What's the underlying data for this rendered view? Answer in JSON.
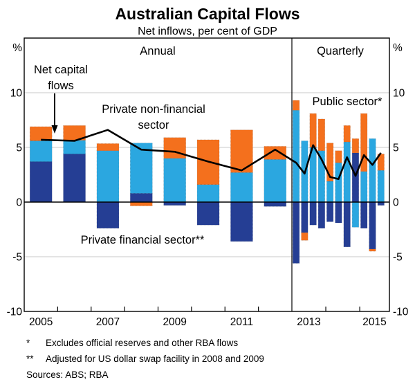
{
  "title": "Australian Capital Flows",
  "subtitle": "Net inflows, per cent of GDP",
  "panels": {
    "annual": "Annual",
    "quarterly": "Quarterly"
  },
  "axis": {
    "unit": "%",
    "yticks": [
      10,
      5,
      0,
      -5,
      -10
    ],
    "gridlines": [
      10,
      5,
      -5
    ],
    "x_labels_annual": [
      "2005",
      "2007",
      "2009",
      "2011"
    ],
    "x_labels_quarterly": [
      "2013",
      "2015"
    ]
  },
  "annotations": {
    "net_capital": [
      "Net capital",
      "flows"
    ],
    "private_nonfinancial": [
      "Private non-financial",
      "sector"
    ],
    "private_financial": "Private financial sector**",
    "public": "Public sector*"
  },
  "colors": {
    "private_financial": "#253E94",
    "private_nonfinancial": "#2BA7E0",
    "public": "#F4701D",
    "net_line": "#000000",
    "gridline": "#C8C8C8"
  },
  "footnotes": [
    {
      "marker": "*",
      "text": "Excludes official reserves and other RBA flows"
    },
    {
      "marker": "**",
      "text": "Adjusted for US dollar swap facility in 2008 and 2009"
    }
  ],
  "sources": "Sources:  ABS; RBA",
  "chart_data": {
    "type": "bar",
    "subtype": "stacked-bar-with-line",
    "ylim": [
      -10,
      15
    ],
    "grid": true,
    "stacking_order_bottom_to_top": [
      "private_financial",
      "private_nonfinancial",
      "public"
    ],
    "panels": [
      {
        "label": "Annual",
        "frequency": "annual",
        "categories": [
          "2005",
          "2006",
          "2007",
          "2008",
          "2009",
          "2010",
          "2011",
          "2012"
        ],
        "series": [
          {
            "name": "Private financial sector",
            "color_key": "private_financial",
            "values": [
              3.7,
              4.4,
              -2.4,
              0.8,
              -0.3,
              -2.1,
              -3.6,
              -0.4
            ]
          },
          {
            "name": "Private non-financial sector",
            "color_key": "private_nonfinancial",
            "values": [
              1.9,
              1.25,
              4.7,
              4.6,
              4.0,
              1.6,
              2.7,
              3.9
            ]
          },
          {
            "name": "Public sector",
            "color_key": "public",
            "values": [
              1.3,
              1.35,
              0.65,
              -0.35,
              1.9,
              4.1,
              3.9,
              1.2
            ]
          }
        ],
        "line": {
          "name": "Net capital flows",
          "values": [
            5.7,
            5.6,
            6.6,
            4.8,
            4.6,
            3.7,
            2.9,
            4.8
          ]
        }
      },
      {
        "label": "Quarterly",
        "frequency": "quarterly",
        "categories": [
          "2013 Q1",
          "2013 Q2",
          "2013 Q3",
          "2013 Q4",
          "2014 Q1",
          "2014 Q2",
          "2014 Q3",
          "2014 Q4",
          "2015 Q1",
          "2015 Q2",
          "2015 Q3"
        ],
        "series": [
          {
            "name": "Private financial sector",
            "color_key": "private_financial",
            "values": [
              -5.6,
              -2.8,
              -2.1,
              -2.4,
              -1.8,
              -1.9,
              -4.1,
              4.5,
              -2.4,
              -4.3,
              -0.3
            ]
          },
          {
            "name": "Private non-financial sector",
            "color_key": "private_nonfinancial",
            "values": [
              8.4,
              5.6,
              5.0,
              4.7,
              1.9,
              3.6,
              5.5,
              -2.3,
              2.8,
              5.8,
              2.9
            ]
          },
          {
            "name": "Public sector",
            "color_key": "public",
            "values": [
              0.9,
              -0.7,
              3.1,
              2.9,
              3.5,
              1.1,
              1.5,
              1.3,
              5.3,
              -0.2,
              1.5
            ]
          }
        ],
        "line": {
          "name": "Net capital flows",
          "values": [
            3.6,
            2.6,
            5.2,
            3.9,
            2.3,
            2.1,
            4.1,
            2.4,
            4.3,
            3.4,
            4.5
          ]
        }
      }
    ]
  }
}
